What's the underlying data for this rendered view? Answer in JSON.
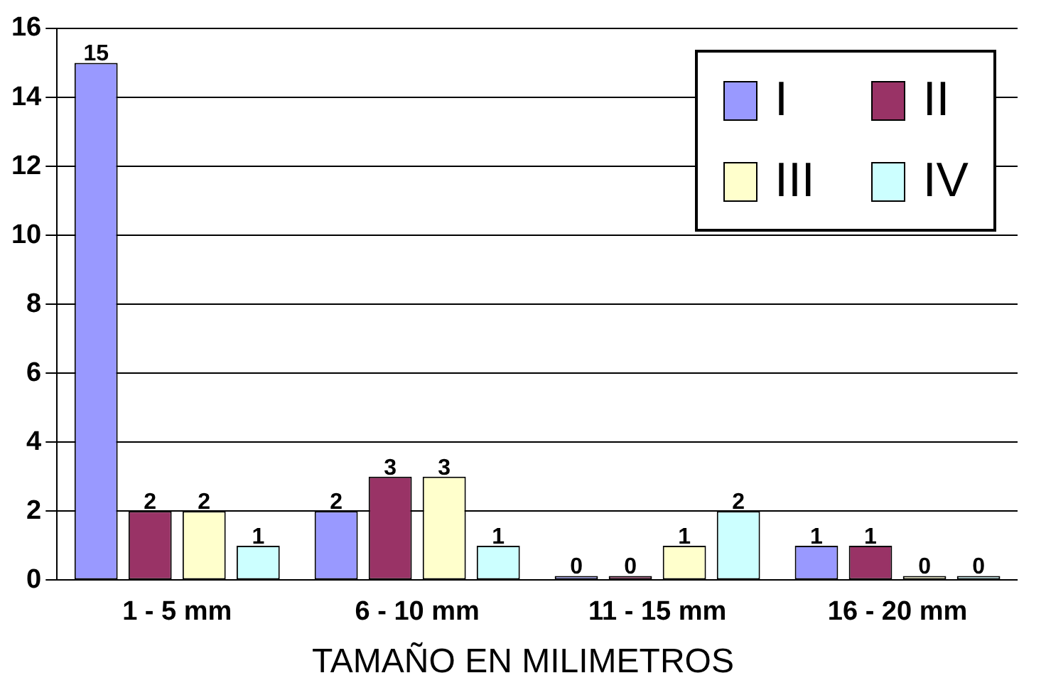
{
  "chart_data": {
    "type": "bar",
    "xlabel": "TAMAÑO EN MILIMETROS",
    "categories": [
      "1 - 5 mm",
      "6 - 10 mm",
      "11 - 15 mm",
      "16 - 20 mm"
    ],
    "series": [
      {
        "name": "I",
        "color": "#9999ff",
        "values": [
          15,
          2,
          0,
          1
        ]
      },
      {
        "name": "II",
        "color": "#993366",
        "values": [
          2,
          3,
          0,
          1
        ]
      },
      {
        "name": "III",
        "color": "#ffffcc",
        "values": [
          2,
          3,
          1,
          0
        ]
      },
      {
        "name": "IV",
        "color": "#ccffff",
        "values": [
          1,
          1,
          2,
          0
        ]
      }
    ],
    "ylim": [
      0,
      16
    ],
    "yticks": [
      0,
      2,
      4,
      6,
      8,
      10,
      12,
      14,
      16
    ],
    "grid": "y",
    "legend": "top right",
    "data_labels": true
  }
}
